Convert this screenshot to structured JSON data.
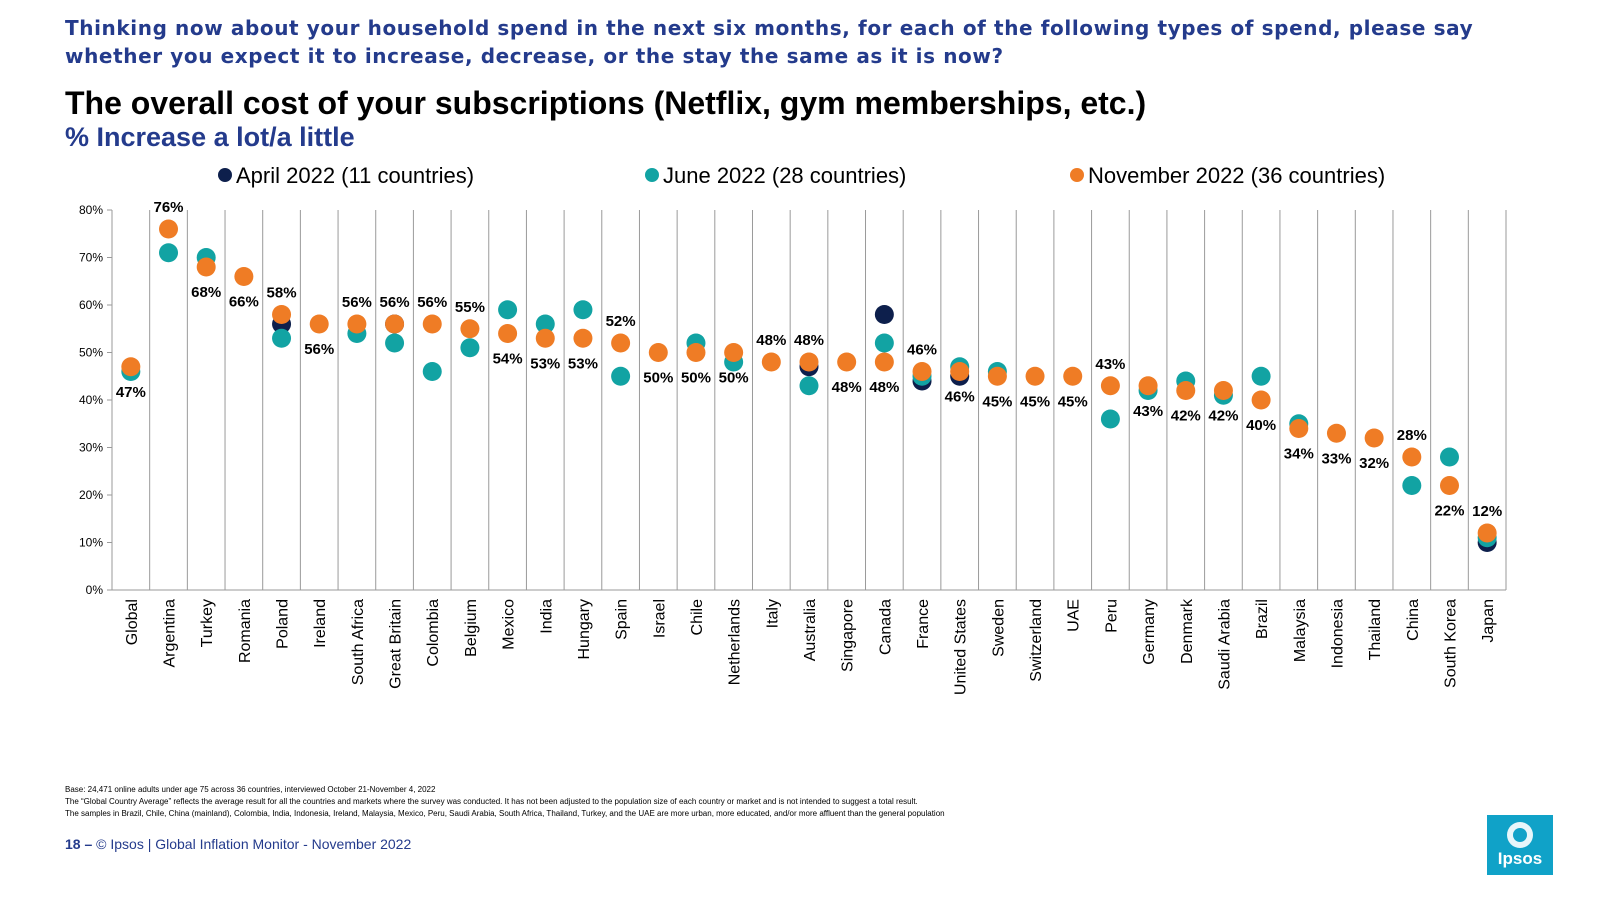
{
  "header": {
    "question": "Thinking now about your household spend in the next six months, for each of the following types of spend, please say whether you expect it to increase, decrease, or the stay the same as it is now?",
    "title": "The overall cost of your subscriptions (Netflix, gym memberships, etc.)",
    "subtitle": "% Increase a lot/a little"
  },
  "footnotes": [
    "Base: 24,471 online adults under age 75 across 36 countries, interviewed October 21-November 4, 2022",
    "The “Global Country Average” reflects the average result for all the countries and markets where the survey was conducted. It has not been adjusted to the population size of each country or market and is not intended to suggest a total result.",
    "The samples in Brazil, Chile, China (mainland), Colombia, India, Indonesia, Ireland, Malaysia, Mexico, Peru, Saudi Arabia, South Africa, Thailand, Turkey, and the UAE are more urban, more educated, and/or more affluent than the general population"
  ],
  "footer": {
    "page_number": "18",
    "separator": "–",
    "source": "© Ipsos | Global Inflation Monitor - November 2022",
    "logo_text": "Ipsos"
  },
  "colors": {
    "april": "#0d1f4c",
    "june": "#12a3a3",
    "november": "#ef7c25",
    "title_blue": "#243b8c",
    "logo": "#10a2c8"
  },
  "chart_data": {
    "type": "scatter",
    "ylim": [
      0,
      80
    ],
    "yticks": [
      "0%",
      "10%",
      "20%",
      "30%",
      "40%",
      "50%",
      "60%",
      "70%",
      "80%"
    ],
    "legend_position": "top",
    "categories": [
      "Global",
      "Argentina",
      "Turkey",
      "Romania",
      "Poland",
      "Ireland",
      "South Africa",
      "Great Britain",
      "Colombia",
      "Belgium",
      "Mexico",
      "India",
      "Hungary",
      "Spain",
      "Israel",
      "Chile",
      "Netherlands",
      "Italy",
      "Australia",
      "Singapore",
      "Canada",
      "France",
      "United States",
      "Sweden",
      "Switzerland",
      "UAE",
      "Peru",
      "Germany",
      "Denmark",
      "Saudi Arabia",
      "Brazil",
      "Malaysia",
      "Indonesia",
      "Thailand",
      "China",
      "South Korea",
      "Japan"
    ],
    "series": [
      {
        "name": "April 2022 (11 countries)",
        "values": [
          null,
          null,
          null,
          null,
          56,
          null,
          null,
          56,
          null,
          null,
          null,
          null,
          null,
          null,
          null,
          null,
          null,
          null,
          47,
          null,
          58,
          44,
          45,
          null,
          null,
          null,
          null,
          null,
          null,
          null,
          null,
          null,
          null,
          null,
          null,
          null,
          10
        ]
      },
      {
        "name": "June 2022 (28 countries)",
        "values": [
          46,
          71,
          70,
          null,
          53,
          null,
          54,
          52,
          46,
          51,
          59,
          56,
          59,
          45,
          null,
          52,
          48,
          null,
          43,
          null,
          52,
          45,
          47,
          46,
          null,
          null,
          36,
          42,
          44,
          41,
          45,
          35,
          null,
          null,
          22,
          28,
          11
        ]
      },
      {
        "name": "November 2022 (36 countries)",
        "values": [
          47,
          76,
          68,
          66,
          58,
          56,
          56,
          56,
          56,
          55,
          54,
          53,
          53,
          52,
          50,
          50,
          50,
          48,
          48,
          48,
          48,
          46,
          46,
          45,
          45,
          45,
          43,
          43,
          42,
          42,
          40,
          34,
          33,
          32,
          28,
          22,
          12
        ]
      }
    ],
    "data_labels": [
      "47%",
      "76%",
      "68%",
      "66%",
      "58%",
      "56%",
      "56%",
      "56%",
      "56%",
      "55%",
      "54%",
      "53%",
      "53%",
      "52%",
      "50%",
      "50%",
      "50%",
      "48%",
      "48%",
      "48%",
      "48%",
      "46%",
      "46%",
      "45%",
      "45%",
      "45%",
      "43%",
      "43%",
      "42%",
      "42%",
      "40%",
      "34%",
      "33%",
      "32%",
      "28%",
      "22%",
      "12%"
    ],
    "label_positions": [
      "below",
      "above",
      "below",
      "below",
      "above",
      "below",
      "above",
      "above",
      "above",
      "above",
      "below",
      "below",
      "below",
      "above",
      "below",
      "below",
      "below",
      "above",
      "above",
      "below",
      "below",
      "above",
      "below",
      "below",
      "below",
      "below",
      "above",
      "below",
      "below",
      "below",
      "below",
      "below",
      "below",
      "below",
      "above",
      "below",
      "above"
    ]
  }
}
